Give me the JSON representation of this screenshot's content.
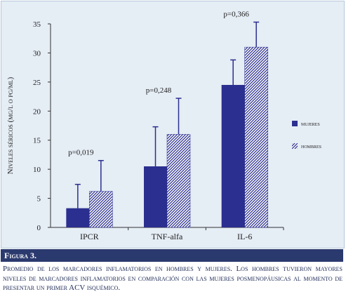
{
  "chart_data": {
    "type": "bar",
    "ylabel": "Niveles séricos (mg/l o pg/ml)",
    "xlabel": "",
    "ylim": [
      0,
      35
    ],
    "yticks": [
      0,
      5,
      10,
      15,
      20,
      25,
      30,
      35
    ],
    "grid": false,
    "legend_placement": "right",
    "categories": [
      "IPCR",
      "TNF-alfa",
      "IL-6"
    ],
    "series": [
      {
        "name": "mujeres",
        "values": [
          3.3,
          10.5,
          24.5
        ],
        "error": [
          4.1,
          6.8,
          4.3
        ],
        "color": "#2b2f8f",
        "pattern": "solid"
      },
      {
        "name": "hombres",
        "values": [
          6.2,
          16.0,
          31.0
        ],
        "error": [
          5.3,
          6.2,
          4.3
        ],
        "color": "#2b2f8f",
        "pattern": "hatched"
      }
    ],
    "annotations": [
      "p=0,019",
      "p=0,248",
      "p=0,366"
    ]
  },
  "figure": {
    "label": "Figura 3.",
    "caption": "Promedio de los marcadores inflamatorios en hombres y mujeres. Los hombres tuvieron mayores niveles de marcadores inflamatorios en comparación con las mujeres posmenopáusicas al momento de presentar un primer ACV isquémico."
  },
  "colors": {
    "panel_bg": "#e5edf5",
    "bar_blue": "#2b2f8f",
    "fig_bar": "#2b3a6e"
  }
}
